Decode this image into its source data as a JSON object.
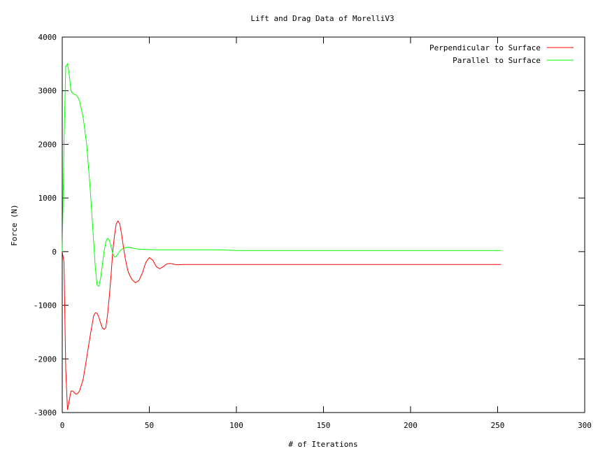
{
  "chart_data": {
    "type": "line",
    "title": "Lift and Drag Data of MorelliV3",
    "xlabel": "# of Iterations",
    "ylabel": "Force (N)",
    "xlim": [
      0,
      300
    ],
    "ylim": [
      -3000,
      4000
    ],
    "xticks": [
      0,
      50,
      100,
      150,
      200,
      250,
      300
    ],
    "yticks": [
      -3000,
      -2000,
      -1000,
      0,
      1000,
      2000,
      3000,
      4000
    ],
    "grid": false,
    "legend_position": "top-right",
    "series": [
      {
        "name": "Perpendicular to Surface",
        "color": "#ff0000",
        "x": [
          0,
          1,
          2,
          3,
          4,
          5,
          6,
          7,
          8,
          9,
          10,
          12,
          14,
          16,
          18,
          19,
          20,
          21,
          22,
          23,
          24,
          25,
          26,
          27,
          28,
          29,
          30,
          31,
          32,
          33,
          34,
          35,
          36,
          37,
          38,
          40,
          42,
          44,
          46,
          48,
          50,
          52,
          54,
          56,
          58,
          60,
          62,
          64,
          66,
          70,
          80,
          100,
          150,
          200,
          252
        ],
        "values": [
          0,
          -200,
          -2200,
          -2950,
          -2780,
          -2600,
          -2600,
          -2630,
          -2660,
          -2640,
          -2590,
          -2380,
          -1980,
          -1580,
          -1200,
          -1140,
          -1150,
          -1220,
          -1330,
          -1420,
          -1450,
          -1420,
          -1180,
          -850,
          -450,
          10,
          300,
          520,
          570,
          520,
          340,
          110,
          -90,
          -260,
          -390,
          -520,
          -580,
          -540,
          -400,
          -200,
          -110,
          -160,
          -280,
          -320,
          -280,
          -230,
          -220,
          -235,
          -245,
          -240,
          -240,
          -240,
          -240,
          -240,
          -240
        ]
      },
      {
        "name": "Parallel to Surface",
        "color": "#00ff00",
        "x": [
          0,
          1,
          2,
          3,
          4,
          5,
          6,
          7,
          8,
          9,
          10,
          12,
          14,
          16,
          18,
          19,
          20,
          21,
          22,
          23,
          24,
          25,
          26,
          27,
          28,
          29,
          30,
          31,
          32,
          33,
          34,
          35,
          36,
          37,
          38,
          40,
          42,
          44,
          46,
          48,
          50,
          52,
          54,
          56,
          58,
          60,
          62,
          64,
          66,
          70,
          80,
          90,
          100,
          150,
          200,
          252
        ],
        "values": [
          0,
          2000,
          3450,
          3500,
          3300,
          3000,
          2950,
          2930,
          2920,
          2880,
          2800,
          2500,
          2000,
          1200,
          200,
          -300,
          -620,
          -650,
          -500,
          -250,
          0,
          180,
          250,
          220,
          100,
          -40,
          -100,
          -90,
          -40,
          10,
          40,
          60,
          70,
          80,
          80,
          70,
          55,
          45,
          42,
          40,
          38,
          36,
          35,
          35,
          35,
          35,
          35,
          35,
          35,
          35,
          35,
          35,
          20,
          20,
          20,
          20
        ]
      }
    ]
  }
}
